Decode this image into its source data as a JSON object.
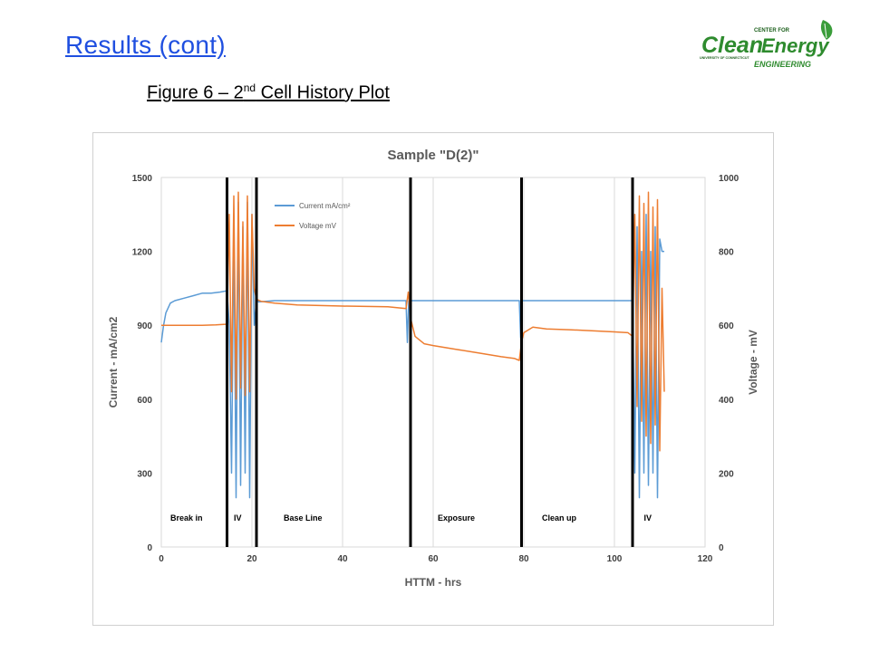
{
  "slide": {
    "title": "Results (cont)",
    "caption_prefix": "Figure 6 – 2",
    "caption_sup": "nd",
    "caption_suffix": " Cell History Plot"
  },
  "logo": {
    "center_for": "CENTER FOR",
    "clean": "Clean",
    "energy": "Energy",
    "university": "UNIVERSITY OF CONNECTICUT",
    "engineering": "ENGINEERING",
    "green": "#2e8b2e",
    "leaf_icon": "leaf-icon"
  },
  "chart_data": {
    "type": "line",
    "title": "Sample \"D(2)\"",
    "xlabel": "HTTM - hrs",
    "ylabel": "Current - mA/cm2",
    "y2label": "Voltage - mV",
    "xlim": [
      0,
      120
    ],
    "ylim": [
      0,
      1500
    ],
    "y2lim": [
      0,
      1000
    ],
    "xticks": [
      0,
      20,
      40,
      60,
      80,
      100,
      120
    ],
    "yticks": [
      0,
      300,
      600,
      900,
      1200,
      1500
    ],
    "y2ticks": [
      0,
      200,
      400,
      600,
      800,
      1000
    ],
    "grid": "vertical",
    "legend_position": "top-left-inside",
    "series": [
      {
        "name": "Current mA/cm²",
        "axis": "left",
        "color": "#5b9bd5",
        "x": [
          0,
          0.5,
          1,
          2,
          3,
          5,
          7,
          9,
          11,
          13,
          14.5,
          15,
          15.5,
          16,
          16.5,
          17,
          17.5,
          18,
          18.5,
          19,
          19.5,
          20,
          20.5,
          21,
          21.5,
          25,
          30,
          40,
          50,
          54,
          54.3,
          54.6,
          55,
          60,
          70,
          79,
          79.3,
          79.6,
          80,
          90,
          100,
          104,
          104.5,
          105,
          105.5,
          106,
          106.5,
          107,
          107.5,
          108,
          108.5,
          109,
          109.5,
          110,
          110.5,
          111
        ],
        "y": [
          830,
          900,
          950,
          990,
          1000,
          1010,
          1020,
          1030,
          1030,
          1035,
          1040,
          900,
          300,
          1300,
          200,
          1400,
          250,
          1300,
          300,
          1400,
          200,
          1350,
          900,
          1000,
          995,
          1000,
          1000,
          1000,
          1000,
          1000,
          830,
          1000,
          1000,
          1000,
          1000,
          1000,
          850,
          1000,
          1000,
          1000,
          1000,
          1000,
          300,
          1300,
          200,
          1200,
          300,
          1350,
          250,
          1200,
          300,
          1300,
          200,
          1250,
          1200,
          1200
        ]
      },
      {
        "name": "Voltage mV",
        "axis": "right",
        "color": "#ed7d31",
        "x": [
          0,
          1,
          3,
          6,
          9,
          12,
          14.5,
          15,
          15.5,
          16,
          16.5,
          17,
          17.5,
          18,
          18.5,
          19,
          19.5,
          20,
          20.5,
          21,
          22,
          25,
          30,
          40,
          50,
          54,
          54.5,
          55,
          56,
          58,
          60,
          65,
          70,
          75,
          78,
          79,
          79.5,
          80,
          82,
          85,
          90,
          95,
          100,
          103,
          104,
          104.5,
          105,
          105.5,
          106,
          106.5,
          107,
          107.5,
          108,
          108.5,
          109,
          109.5,
          110,
          110.5,
          111
        ],
        "y": [
          600,
          600,
          600,
          600,
          600,
          601,
          603,
          900,
          420,
          950,
          400,
          960,
          430,
          880,
          410,
          950,
          420,
          900,
          700,
          670,
          665,
          660,
          655,
          652,
          650,
          645,
          690,
          620,
          570,
          550,
          545,
          535,
          525,
          515,
          510,
          505,
          555,
          580,
          595,
          590,
          588,
          585,
          582,
          580,
          570,
          900,
          380,
          950,
          340,
          930,
          300,
          960,
          280,
          920,
          330,
          940,
          260,
          700,
          420
        ]
      }
    ],
    "phase_lines_x": [
      14.5,
      21,
      55,
      79.5,
      104
    ],
    "annotations": [
      {
        "text": "Break in",
        "x": 2
      },
      {
        "text": "IV",
        "x": 16
      },
      {
        "text": "Base Line",
        "x": 27
      },
      {
        "text": "Exposure",
        "x": 61
      },
      {
        "text": "Clean up",
        "x": 84
      },
      {
        "text": "IV",
        "x": 106.5
      }
    ]
  }
}
